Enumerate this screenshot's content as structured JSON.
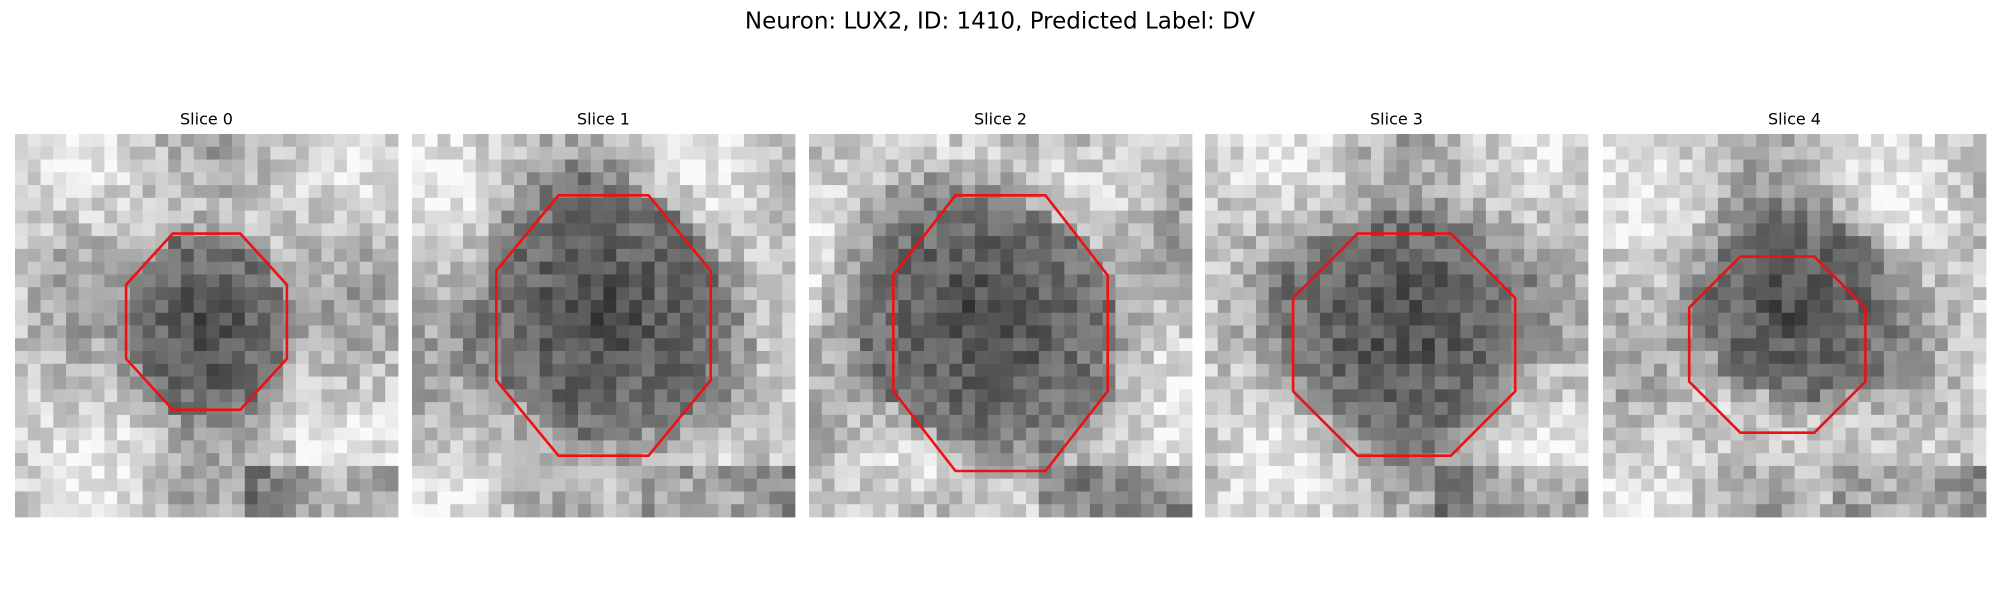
{
  "title": "Neuron: LUX2, ID: 1410, Predicted Label: DV",
  "panels": [
    {
      "title": "Slice 0"
    },
    {
      "title": "Slice 1"
    },
    {
      "title": "Slice 2"
    },
    {
      "title": "Slice 3"
    },
    {
      "title": "Slice 4"
    }
  ]
}
